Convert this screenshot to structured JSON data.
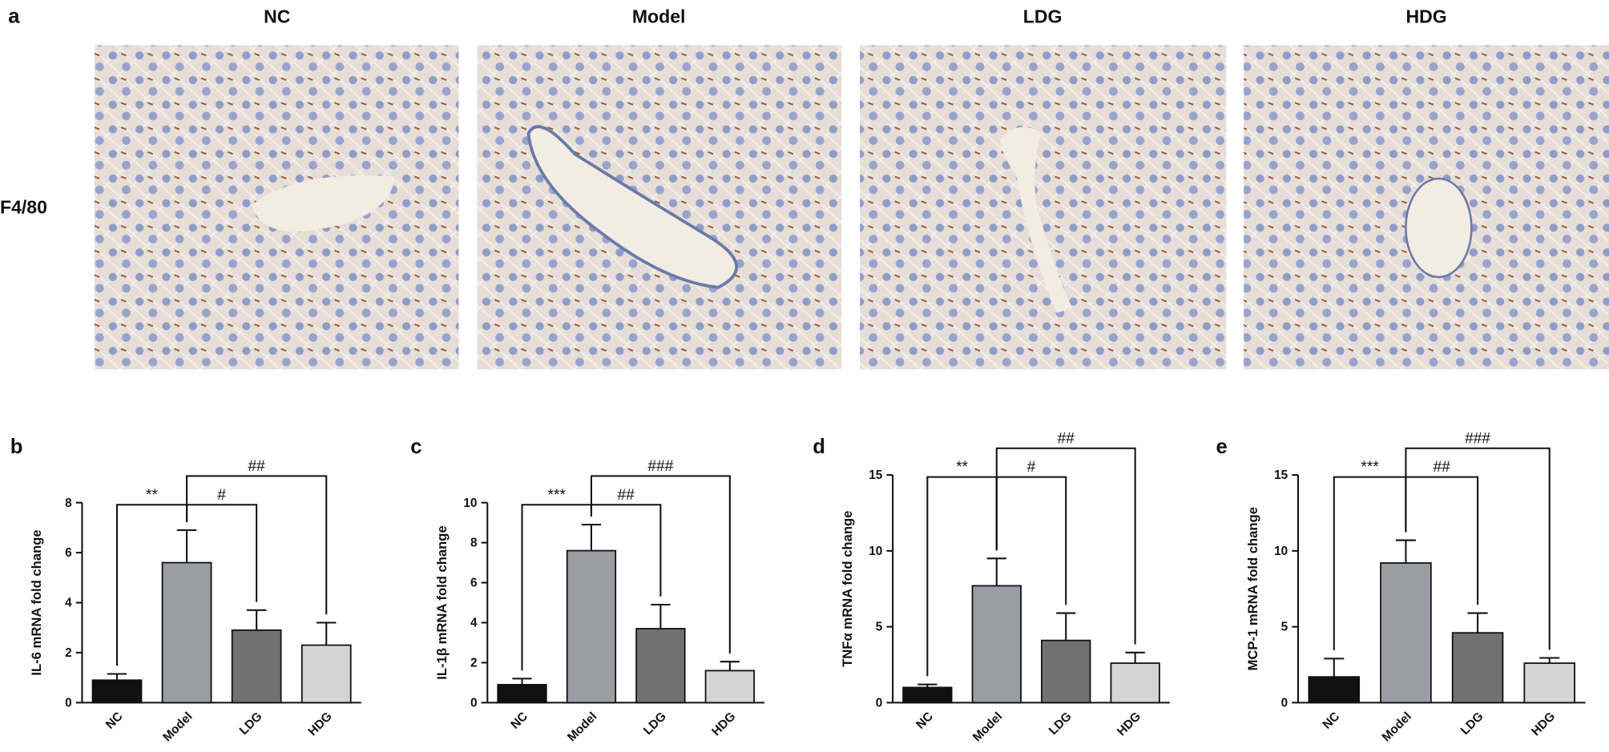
{
  "panel_a": {
    "label": "a",
    "columns": [
      "NC",
      "Model",
      "LDG",
      "HDG"
    ],
    "row_label": "F4/80"
  },
  "chart_data": [
    {
      "type": "bar",
      "panel_label": "b",
      "ylabel": "IL-6 mRNA fold change",
      "categories": [
        "NC",
        "Model",
        "LDG",
        "HDG"
      ],
      "colors": [
        "#111111",
        "#9b9da4",
        "#717171",
        "#d5d5d5"
      ],
      "values": [
        0.9,
        5.6,
        2.9,
        2.3
      ],
      "errors": [
        0.25,
        1.3,
        0.8,
        0.9
      ],
      "ylim": [
        0,
        8
      ],
      "yticks": [
        0,
        2,
        4,
        6,
        8
      ],
      "annotations": [
        {
          "text": "**",
          "from": "NC",
          "to": "Model"
        },
        {
          "text": "#",
          "from": "Model",
          "to": "LDG"
        },
        {
          "text": "##",
          "from": "Model",
          "to": "HDG"
        }
      ]
    },
    {
      "type": "bar",
      "panel_label": "c",
      "ylabel": "IL-1β mRNA fold change",
      "categories": [
        "NC",
        "Model",
        "LDG",
        "HDG"
      ],
      "colors": [
        "#111111",
        "#9b9da4",
        "#717171",
        "#d5d5d5"
      ],
      "values": [
        0.9,
        7.6,
        3.7,
        1.6
      ],
      "errors": [
        0.3,
        1.3,
        1.2,
        0.45
      ],
      "ylim": [
        0,
        10
      ],
      "yticks": [
        0,
        2,
        4,
        6,
        8,
        10
      ],
      "annotations": [
        {
          "text": "***",
          "from": "NC",
          "to": "Model"
        },
        {
          "text": "##",
          "from": "Model",
          "to": "LDG"
        },
        {
          "text": "###",
          "from": "Model",
          "to": "HDG"
        }
      ]
    },
    {
      "type": "bar",
      "panel_label": "d",
      "ylabel": "TNFα mRNA fold change",
      "categories": [
        "NC",
        "Model",
        "LDG",
        "HDG"
      ],
      "colors": [
        "#111111",
        "#9b9da4",
        "#717171",
        "#d5d5d5"
      ],
      "values": [
        1.0,
        7.7,
        4.1,
        2.6
      ],
      "errors": [
        0.2,
        1.8,
        1.8,
        0.7
      ],
      "ylim": [
        0,
        15
      ],
      "yticks": [
        0,
        5,
        10,
        15
      ],
      "annotations": [
        {
          "text": "**",
          "from": "NC",
          "to": "Model"
        },
        {
          "text": "#",
          "from": "Model",
          "to": "LDG"
        },
        {
          "text": "##",
          "from": "Model",
          "to": "HDG"
        }
      ]
    },
    {
      "type": "bar",
      "panel_label": "e",
      "ylabel": "MCP-1 mRNA fold change",
      "categories": [
        "NC",
        "Model",
        "LDG",
        "HDG"
      ],
      "colors": [
        "#111111",
        "#9b9da4",
        "#717171",
        "#d5d5d5"
      ],
      "values": [
        1.7,
        9.2,
        4.6,
        2.6
      ],
      "errors": [
        1.2,
        1.5,
        1.3,
        0.35
      ],
      "ylim": [
        0,
        15
      ],
      "yticks": [
        0,
        5,
        10,
        15
      ],
      "annotations": [
        {
          "text": "***",
          "from": "NC",
          "to": "Model"
        },
        {
          "text": "##",
          "from": "Model",
          "to": "LDG"
        },
        {
          "text": "###",
          "from": "Model",
          "to": "HDG"
        }
      ]
    }
  ]
}
